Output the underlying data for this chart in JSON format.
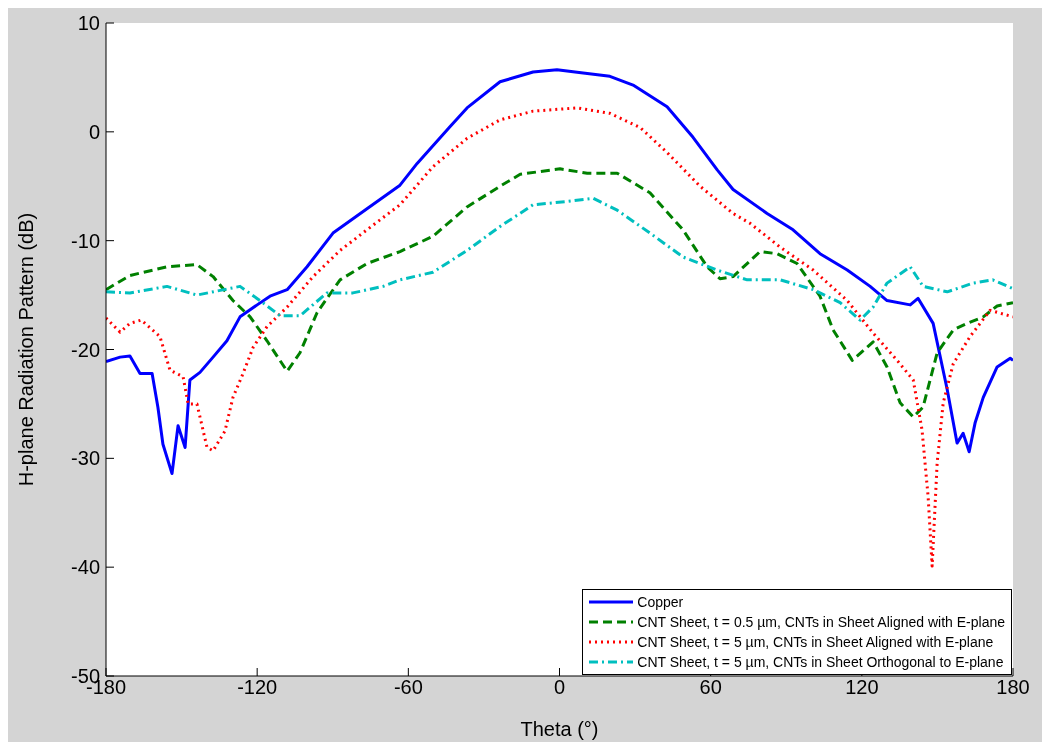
{
  "chart_data": {
    "type": "line",
    "xlabel": "Theta (°)",
    "ylabel": "H-plane Radiation Pattern (dB)",
    "xlim": [
      -180,
      180
    ],
    "xticks": [
      -180,
      -120,
      -60,
      0,
      60,
      120,
      180
    ],
    "ylim": [
      -50,
      10
    ],
    "yticks": [
      -50,
      -40,
      -30,
      -20,
      -10,
      0,
      10
    ],
    "legend": "bottom right",
    "marker": "none",
    "series": [
      {
        "name": "Copper",
        "color": "#0000ff",
        "line_style": "solid",
        "x": [
          -180,
          -174.4,
          -170.5,
          -166.5,
          -161.7,
          -159.4,
          -157.4,
          -153.8,
          -151.4,
          -148.6,
          -146.7,
          -142.7,
          -137.5,
          -132,
          -126.8,
          -120,
          -114.9,
          -108.1,
          -100.2,
          -89.9,
          -76,
          -63.3,
          -56.5,
          -43.4,
          -36.7,
          -23.6,
          -10.5,
          -1,
          9.4,
          20,
          29.2,
          42.7,
          53,
          62.6,
          68.9,
          82.4,
          92.7,
          103.4,
          114.2,
          123.3,
          130,
          139.2,
          142.3,
          148.3,
          153.9,
          157.8,
          160.2,
          162.6,
          165,
          168.2,
          173.7,
          178.9,
          180
        ],
        "values": [
          -21.1,
          -20.7,
          -20.6,
          -22.2,
          -22.2,
          -25.3,
          -28.7,
          -31.4,
          -27,
          -29,
          -22.8,
          -22.1,
          -20.7,
          -19.2,
          -17,
          -15.9,
          -15.1,
          -14.5,
          -12.4,
          -9.3,
          -7,
          -4.9,
          -2.9,
          0.5,
          2.2,
          4.6,
          5.5,
          5.7,
          5.4,
          5.1,
          4.3,
          2.3,
          -0.5,
          -3.5,
          -5.3,
          -7.5,
          -9,
          -11.2,
          -12.7,
          -14.2,
          -15.5,
          -15.9,
          -15.3,
          -17.6,
          -23.7,
          -28.6,
          -27.7,
          -29.4,
          -26.7,
          -24.4,
          -21.6,
          -20.8,
          -21
        ]
      },
      {
        "name": "CNT Sheet, t = 0.5 µm, CNTs in Sheet Aligned with E-plane",
        "color": "#008000",
        "line_style": "dashed",
        "x": [
          -180,
          -170.5,
          -155.8,
          -143.9,
          -137.5,
          -129.6,
          -122.8,
          -116.1,
          -108.1,
          -103,
          -96.2,
          -87.1,
          -76.4,
          -63.3,
          -50.2,
          -36.7,
          -23.6,
          -15.6,
          0.2,
          11,
          22.9,
          35.9,
          49,
          58.6,
          63.7,
          68.9,
          79.6,
          86.4,
          94.3,
          103.4,
          108.6,
          116.2,
          124.5,
          130,
          135.2,
          140.4,
          144.3,
          149.9,
          156.3,
          161.8,
          168.2,
          173.7,
          180
        ],
        "values": [
          -14.5,
          -13.2,
          -12.4,
          -12.2,
          -13.3,
          -15.5,
          -17,
          -19.2,
          -22,
          -20.3,
          -16.6,
          -13.6,
          -12.1,
          -11,
          -9.6,
          -6.9,
          -5,
          -3.9,
          -3.4,
          -3.8,
          -3.8,
          -5.6,
          -9,
          -12.4,
          -13.5,
          -13.3,
          -11,
          -11.2,
          -12.1,
          -15.1,
          -18.2,
          -21,
          -19.3,
          -21.6,
          -24.9,
          -26.2,
          -25.3,
          -20.3,
          -18.2,
          -17.6,
          -17,
          -16,
          -15.7
        ]
      },
      {
        "name": "CNT Sheet, t = 5 µm, CNTs in Sheet Aligned with E-plane",
        "color": "#ff0000",
        "line_style": "dotted",
        "x": [
          -180,
          -174.4,
          -170.5,
          -166,
          -158.6,
          -154.6,
          -149.4,
          -147.4,
          -143.9,
          -139.9,
          -137.5,
          -132.8,
          -129.6,
          -125.6,
          -121.6,
          -116.1,
          -108.1,
          -97.8,
          -87.1,
          -76.4,
          -63.3,
          -50.2,
          -36.7,
          -23.6,
          -10.5,
          7,
          20,
          32,
          42.7,
          55.8,
          68.9,
          75.6,
          87.6,
          100.7,
          114.2,
          124.5,
          134,
          140.4,
          143.9,
          146.3,
          147.9,
          149.9,
          152.3,
          156.3,
          163,
          170.9,
          180
        ],
        "values": [
          -17.1,
          -18.4,
          -17.6,
          -17.3,
          -18.8,
          -21.9,
          -22.5,
          -25,
          -25,
          -29,
          -29.3,
          -27.5,
          -24.4,
          -22.2,
          -19.8,
          -17.9,
          -16.1,
          -13.3,
          -10.9,
          -9,
          -6.7,
          -3.2,
          -0.6,
          1.1,
          1.9,
          2.2,
          1.7,
          0.4,
          -1.9,
          -5,
          -7.5,
          -8.4,
          -10.6,
          -12.7,
          -15.5,
          -18.5,
          -21,
          -22.8,
          -27.4,
          -33.5,
          -39.9,
          -30.4,
          -24.9,
          -21.3,
          -18.8,
          -16.4,
          -17
        ]
      },
      {
        "name": "CNT Sheet, t = 5 µm, CNTs in Sheet Orthogonal to E-plane",
        "color": "#00bfbf",
        "line_style": "dashdot",
        "x": [
          -180,
          -170.5,
          -155.8,
          -143.9,
          -126.8,
          -118.9,
          -110.9,
          -103,
          -92.3,
          -82,
          -70,
          -63.3,
          -50.2,
          -36.7,
          -23.6,
          -10.5,
          3,
          13.3,
          22.9,
          35.9,
          49,
          62.6,
          74.5,
          87.6,
          100.7,
          111.4,
          119.3,
          124.5,
          130,
          139.2,
          144.3,
          153.9,
          164.2,
          172,
          180
        ],
        "values": [
          -14.7,
          -14.8,
          -14.2,
          -15,
          -14.2,
          -15.5,
          -16.9,
          -16.9,
          -14.8,
          -14.8,
          -14.2,
          -13.6,
          -12.9,
          -10.9,
          -8.7,
          -6.7,
          -6.4,
          -6.1,
          -7.2,
          -9.3,
          -11.5,
          -12.7,
          -13.6,
          -13.6,
          -14.5,
          -15.7,
          -17.3,
          -16.1,
          -13.9,
          -12.4,
          -14.2,
          -14.7,
          -13.9,
          -13.6,
          -14.4
        ]
      }
    ]
  }
}
